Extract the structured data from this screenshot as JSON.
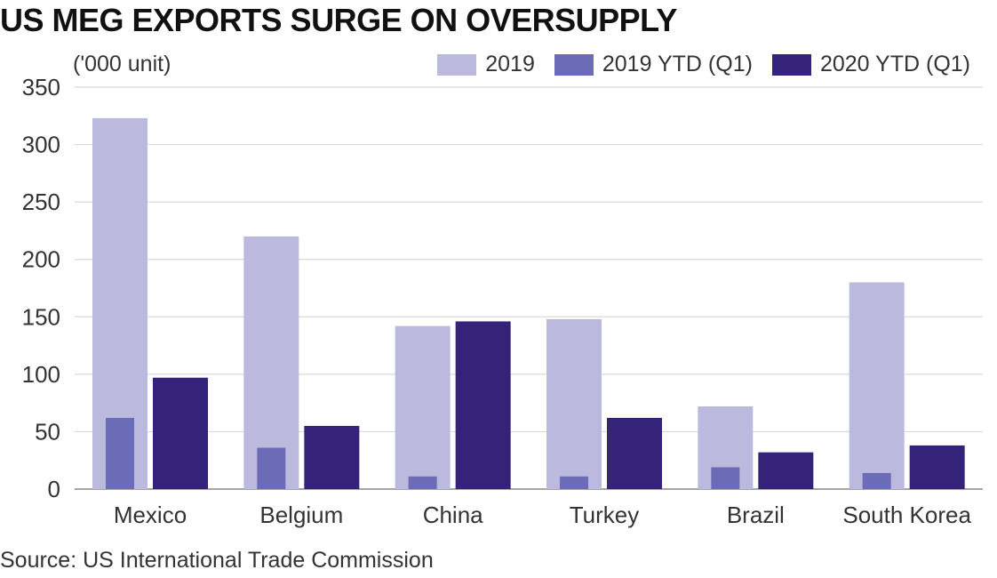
{
  "colors": {
    "series_2019": "#bbbade",
    "series_2019_ytd": "#6c6bb5",
    "series_2020_ytd": "#35237a",
    "grid": "#d9d9d9",
    "axis": "#888888"
  },
  "chart_data": {
    "type": "bar",
    "title": "US MEG EXPORTS SURGE ON OVERSUPPLY",
    "ylabel": "('000 unit)",
    "xlabel": "",
    "categories": [
      "Mexico",
      "Belgium",
      "China",
      "Turkey",
      "Brazil",
      "South Korea"
    ],
    "series": [
      {
        "name": "2019",
        "values": [
          323,
          220,
          142,
          148,
          72,
          180
        ]
      },
      {
        "name": "2019 YTD (Q1)",
        "values": [
          62,
          36,
          11,
          11,
          19,
          14
        ]
      },
      {
        "name": "2020 YTD (Q1)",
        "values": [
          97,
          55,
          146,
          62,
          32,
          38
        ]
      }
    ],
    "ylim": [
      0,
      350
    ],
    "yticks": [
      0,
      50,
      100,
      150,
      200,
      250,
      300,
      350
    ],
    "grid": true,
    "legend_position": "top-right",
    "source": "Source: US International Trade Commission"
  }
}
